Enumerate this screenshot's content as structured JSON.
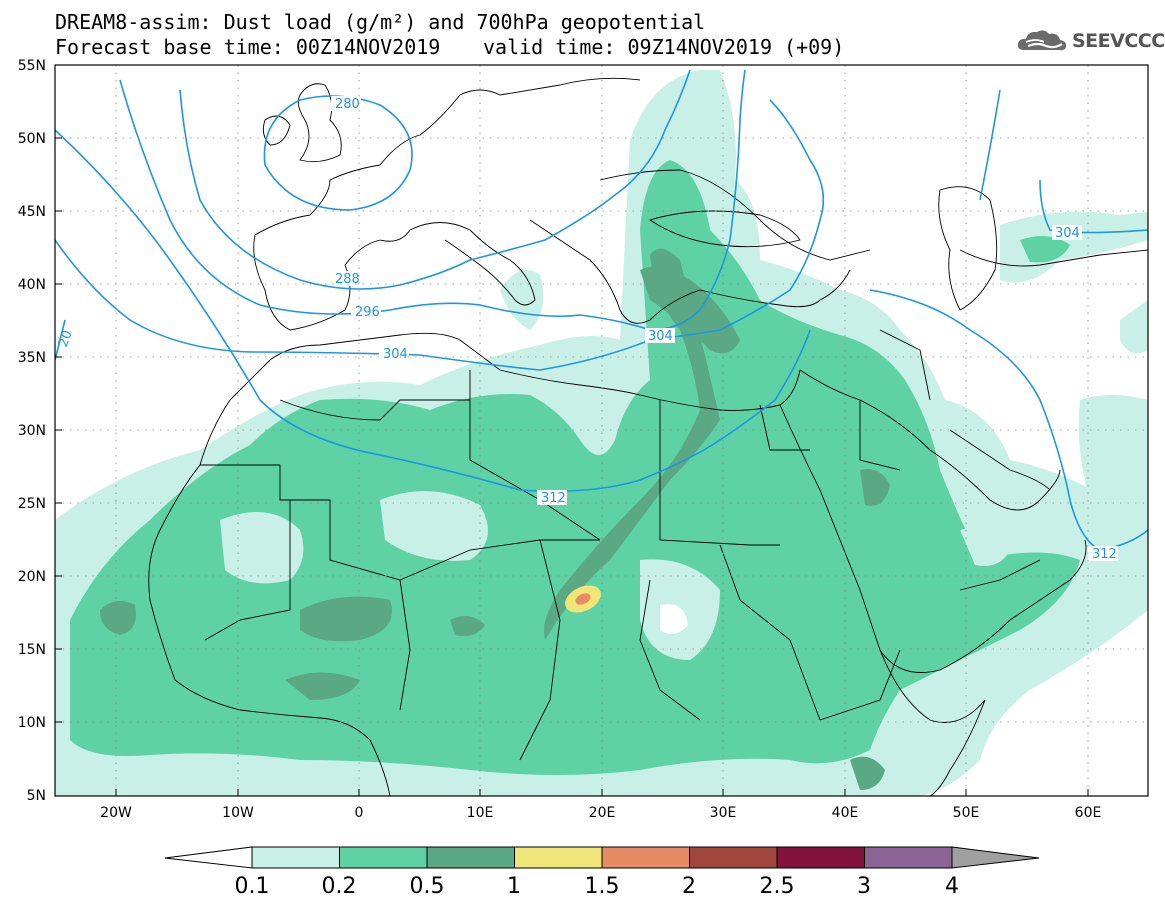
{
  "header": {
    "title_line1": "DREAM8-assim: Dust load (g/m²) and 700hPa geopotential",
    "base_time": "Forecast base time: 00Z14NOV2019",
    "valid_time": "valid time: 09Z14NOV2019 (+09)"
  },
  "logo": {
    "text": "SEEVCCC",
    "icon": "cloud-icon",
    "color": "#555555"
  },
  "map": {
    "lat_labels": [
      "55N",
      "50N",
      "45N",
      "40N",
      "35N",
      "30N",
      "25N",
      "20N",
      "15N",
      "10N",
      "5N"
    ],
    "lon_labels": [
      "20W",
      "10W",
      "0",
      "10E",
      "20E",
      "30E",
      "40E",
      "50E",
      "60E"
    ],
    "contour_labels": [
      "280",
      "288",
      "296",
      "304",
      "312",
      "20",
      "304",
      "304",
      "312"
    ],
    "grid": true
  },
  "colorbar": {
    "ticks": [
      "0.1",
      "0.2",
      "0.5",
      "1",
      "1.5",
      "2",
      "2.5",
      "3",
      "4"
    ],
    "colors": [
      "#c8f0e6",
      "#5fd2a5",
      "#5aa884",
      "#f0e678",
      "#e68c64",
      "#a0463c",
      "#82143c",
      "#8c6496"
    ],
    "under_color": "#ffffff",
    "over_color": "#a0a0a0"
  },
  "colors": {
    "contour": "#1e96e6",
    "coast": "#000000"
  }
}
